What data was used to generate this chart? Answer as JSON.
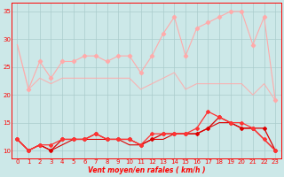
{
  "x": [
    0,
    1,
    2,
    3,
    4,
    5,
    6,
    7,
    8,
    9,
    10,
    11,
    12,
    13,
    14,
    15,
    16,
    17,
    18,
    19,
    20,
    21,
    22,
    23
  ],
  "upper_line1": [
    29,
    21,
    null,
    null,
    null,
    null,
    null,
    null,
    null,
    null,
    null,
    null,
    null,
    null,
    null,
    null,
    null,
    null,
    null,
    null,
    null,
    null,
    null,
    null
  ],
  "upper_line2": [
    null,
    21,
    26,
    23,
    26,
    26,
    27,
    27,
    26,
    27,
    27,
    24,
    27,
    31,
    34,
    27,
    32,
    33,
    34,
    35,
    35,
    29,
    34,
    19
  ],
  "upper_line3_smooth": [
    null,
    21,
    23,
    22,
    23,
    23,
    23,
    23,
    23,
    23,
    23,
    21,
    22,
    23,
    24,
    21,
    22,
    22,
    22,
    22,
    22,
    20,
    22,
    19
  ],
  "lower_line1": [
    12,
    10,
    11,
    10,
    12,
    12,
    12,
    13,
    12,
    12,
    12,
    11,
    12,
    13,
    13,
    13,
    13,
    14,
    16,
    15,
    14,
    14,
    14,
    10
  ],
  "lower_line2": [
    12,
    10,
    11,
    10,
    11,
    12,
    12,
    12,
    12,
    12,
    11,
    11,
    12,
    12,
    13,
    13,
    13,
    14,
    15,
    15,
    14,
    14,
    12,
    10
  ],
  "lower_line3": [
    12,
    10,
    11,
    11,
    12,
    12,
    12,
    13,
    12,
    12,
    12,
    11,
    13,
    13,
    13,
    13,
    14,
    17,
    16,
    15,
    15,
    14,
    12,
    10
  ],
  "bg_color": "#cce8e8",
  "grid_color": "#aacccc",
  "line_light_color": "#ffaaaa",
  "line_dark_color": "#dd0000",
  "line_medium_color": "#ff3333",
  "arrow_color": "#dd0000",
  "xlabel": "Vent moyen/en rafales ( km/h )",
  "xlim": [
    -0.5,
    23.5
  ],
  "ylim": [
    8.5,
    36.5
  ],
  "yticks": [
    10,
    15,
    20,
    25,
    30,
    35
  ],
  "xticks": [
    0,
    1,
    2,
    3,
    4,
    5,
    6,
    7,
    8,
    9,
    10,
    11,
    12,
    13,
    14,
    15,
    16,
    17,
    18,
    19,
    20,
    21,
    22,
    23
  ]
}
